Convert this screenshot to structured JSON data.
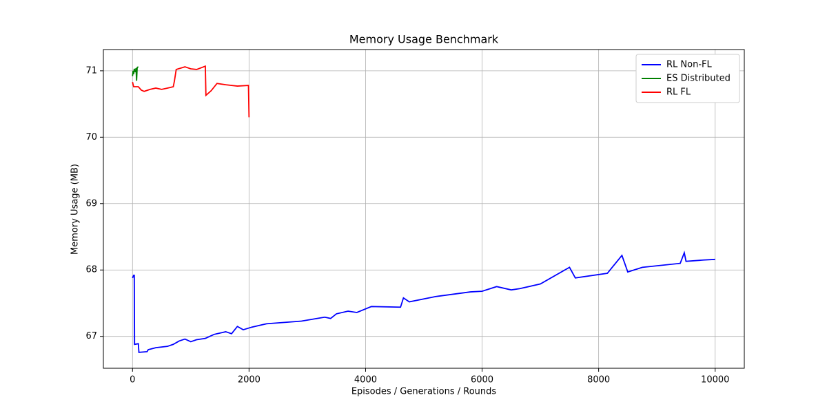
{
  "chart_data": {
    "type": "line",
    "title": "Memory Usage Benchmark",
    "x_label": "Episodes / Generations / Rounds",
    "y_label": "Memory Usage (MB)",
    "xlim": [
      -500,
      10500
    ],
    "ylim": [
      66.52,
      71.32
    ],
    "xticks": [
      0,
      2000,
      4000,
      6000,
      8000,
      10000
    ],
    "yticks": [
      67,
      68,
      69,
      70,
      71
    ],
    "grid": true,
    "legend": "upper right",
    "series": [
      {
        "name": "RL Non-FL",
        "color": "#0000ff",
        "x": [
          0,
          20,
          30,
          35,
          100,
          110,
          250,
          270,
          400,
          600,
          700,
          800,
          900,
          1000,
          1100,
          1250,
          1400,
          1600,
          1700,
          1800,
          1900,
          2050,
          2300,
          2900,
          3300,
          3400,
          3500,
          3700,
          3850,
          4100,
          4600,
          4650,
          4750,
          5200,
          5800,
          6000,
          6250,
          6500,
          6650,
          7000,
          7500,
          7600,
          8150,
          8400,
          8500,
          8750,
          9400,
          9470,
          9500,
          9800,
          10000
        ],
        "values": [
          67.88,
          67.92,
          67.92,
          66.88,
          66.89,
          66.76,
          66.77,
          66.8,
          66.83,
          66.85,
          66.88,
          66.93,
          66.96,
          66.92,
          66.95,
          66.97,
          67.03,
          67.07,
          67.04,
          67.15,
          67.1,
          67.14,
          67.19,
          67.23,
          67.29,
          67.27,
          67.34,
          67.38,
          67.36,
          67.45,
          67.44,
          67.58,
          67.52,
          67.6,
          67.67,
          67.68,
          67.75,
          67.7,
          67.72,
          67.79,
          68.04,
          67.88,
          67.95,
          68.22,
          67.97,
          68.04,
          68.1,
          68.26,
          68.13,
          68.15,
          68.16
        ]
      },
      {
        "name": "ES Distributed",
        "color": "#008000",
        "x": [
          0,
          10,
          20,
          30,
          50,
          60,
          70,
          80,
          100
        ],
        "values": [
          70.92,
          71.0,
          70.95,
          71.03,
          70.98,
          71.04,
          70.85,
          71.05,
          71.06
        ]
      },
      {
        "name": "RL FL",
        "color": "#ff0000",
        "x": [
          0,
          20,
          100,
          150,
          200,
          300,
          400,
          500,
          600,
          700,
          720,
          750,
          900,
          1000,
          1100,
          1250,
          1260,
          1350,
          1450,
          1600,
          1800,
          1990,
          2000
        ],
        "values": [
          70.83,
          70.76,
          70.76,
          70.71,
          70.69,
          70.72,
          70.74,
          70.72,
          70.74,
          70.76,
          70.85,
          71.02,
          71.06,
          71.03,
          71.02,
          71.07,
          70.63,
          70.7,
          70.81,
          70.79,
          70.77,
          70.78,
          70.3
        ]
      }
    ]
  }
}
